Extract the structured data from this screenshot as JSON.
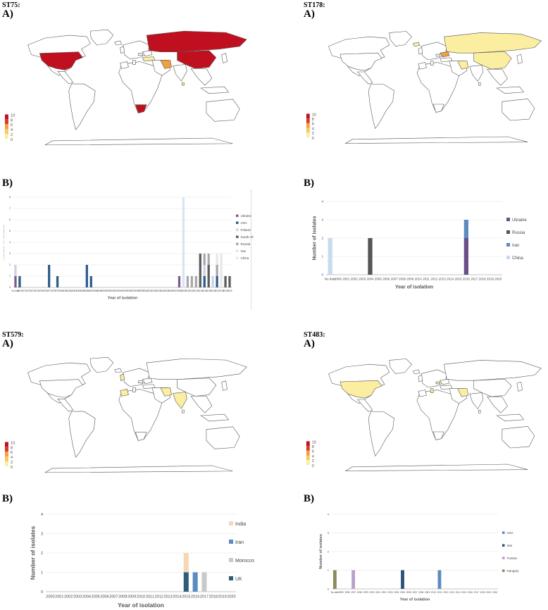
{
  "panels": [
    {
      "st": "ST75:",
      "map_label": "A)",
      "chart_label": "B)",
      "map_highlights": {
        "dark": [
          "usa",
          "russia",
          "china",
          "southafrica"
        ],
        "mid": [
          "iran"
        ],
        "light": [
          "turkey",
          "sriLanka"
        ]
      },
      "scale_ticks": [
        "10",
        "8",
        "6",
        "4",
        "2",
        "0"
      ]
    },
    {
      "st": "ST178:",
      "map_label": "A)",
      "chart_label": "B)",
      "map_highlights": {
        "dark": [],
        "mid": [
          "ukraine"
        ],
        "light": [
          "russia",
          "china",
          "iran",
          "iceland"
        ]
      },
      "scale_ticks": [
        "10",
        "8",
        "6",
        "4",
        "2",
        "0"
      ]
    },
    {
      "st": "ST579:",
      "map_label": "A)",
      "chart_label": "B)",
      "map_highlights": {
        "dark": [],
        "mid": [],
        "light": [
          "morocco",
          "india",
          "iran",
          "uk"
        ]
      },
      "scale_ticks": [
        "10",
        "8",
        "6",
        "4",
        "2",
        "0"
      ]
    },
    {
      "st": "ST483:",
      "map_label": "A)",
      "chart_label": "B)",
      "map_highlights": {
        "dark": [],
        "mid": [],
        "light": [
          "usa",
          "iran",
          "tunisia",
          "hungary"
        ]
      },
      "scale_ticks": [
        "10",
        "8",
        "6",
        "4",
        "2",
        "0"
      ]
    }
  ],
  "map_colors": {
    "dark": "#c0101f",
    "mid": "#f0a040",
    "light": "#fbeea0",
    "land": "#ffffff",
    "border": "#555555"
  },
  "chart_data": [
    {
      "type": "bar",
      "stacked": true,
      "title": "",
      "xlabel": "Year of isolation",
      "ylabel": "Number of isolates",
      "ylim": [
        0,
        8
      ],
      "yticks": [
        "0",
        "1",
        "2",
        "3",
        "4",
        "5",
        "6",
        "7",
        "8"
      ],
      "categories": [
        "No date",
        "1970",
        "1971",
        "1972",
        "1973",
        "1974",
        "1975",
        "1976",
        "1977",
        "1978",
        "1979",
        "1980",
        "1981",
        "1982",
        "1983",
        "1984",
        "1985",
        "1986",
        "1987",
        "1988",
        "1989",
        "1990",
        "1991",
        "1992",
        "1993",
        "1994",
        "1995",
        "1996",
        "1997",
        "1998",
        "1999",
        "2000",
        "2001",
        "2002",
        "2003",
        "2004",
        "2005",
        "2006",
        "2007",
        "2008",
        "2009",
        "2010",
        "2011",
        "2012",
        "2013",
        "2014",
        "2015",
        "2016",
        "2017",
        "2018",
        "2019",
        "2020"
      ],
      "series": [
        {
          "name": "Ukraine",
          "color": "#7d5b8c",
          "values": [
            1,
            0,
            0,
            0,
            0,
            0,
            0,
            0,
            0,
            0,
            0,
            0,
            0,
            0,
            0,
            0,
            0,
            0,
            0,
            0,
            0,
            0,
            0,
            0,
            0,
            0,
            0,
            0,
            0,
            0,
            0,
            0,
            0,
            0,
            0,
            0,
            0,
            0,
            0,
            1,
            0,
            0,
            0,
            0,
            0,
            0,
            0,
            0,
            0,
            0,
            0,
            0
          ]
        },
        {
          "name": "USA",
          "color": "#2e5d8a",
          "values": [
            0,
            1,
            0,
            0,
            0,
            0,
            0,
            0,
            2,
            0,
            1,
            0,
            0,
            0,
            0,
            0,
            0,
            2,
            1,
            0,
            0,
            0,
            0,
            0,
            0,
            0,
            0,
            0,
            0,
            0,
            0,
            0,
            0,
            0,
            0,
            0,
            0,
            0,
            0,
            0,
            0,
            0,
            0,
            0,
            0,
            1,
            0,
            0,
            1,
            0,
            0,
            0
          ]
        },
        {
          "name": "Poland",
          "color": "#c9d4e2",
          "values": [
            1,
            0,
            0,
            0,
            0,
            0,
            0,
            0,
            0,
            0,
            0,
            0,
            0,
            0,
            0,
            0,
            0,
            0,
            0,
            0,
            0,
            0,
            0,
            0,
            0,
            0,
            0,
            0,
            0,
            0,
            0,
            0,
            0,
            0,
            0,
            0,
            0,
            0,
            0,
            0,
            0,
            0,
            0,
            0,
            0,
            1,
            0,
            1,
            0,
            0,
            0,
            0
          ]
        },
        {
          "name": "South Africa",
          "color": "#5b5b5b",
          "values": [
            0,
            0,
            0,
            0,
            0,
            0,
            0,
            0,
            0,
            0,
            0,
            0,
            0,
            0,
            0,
            0,
            0,
            0,
            0,
            0,
            0,
            0,
            0,
            0,
            0,
            0,
            0,
            0,
            0,
            0,
            0,
            0,
            0,
            0,
            0,
            0,
            0,
            0,
            0,
            0,
            0,
            0,
            0,
            0,
            3,
            0,
            2,
            0,
            0,
            0,
            1,
            1
          ]
        },
        {
          "name": "Russia",
          "color": "#a8a8a8",
          "values": [
            0,
            0,
            0,
            0,
            0,
            0,
            0,
            0,
            0,
            0,
            0,
            0,
            0,
            0,
            0,
            0,
            0,
            0,
            0,
            0,
            0,
            0,
            0,
            0,
            0,
            0,
            0,
            0,
            0,
            0,
            0,
            0,
            0,
            0,
            0,
            0,
            0,
            0,
            0,
            0,
            0,
            1,
            1,
            1,
            0,
            1,
            1,
            0,
            1,
            0,
            0,
            0
          ]
        },
        {
          "name": "Iran",
          "color": "#d6e4f4",
          "values": [
            0,
            0,
            0,
            0,
            0,
            0,
            0,
            0,
            0,
            0,
            0,
            0,
            0,
            0,
            0,
            0,
            0,
            0,
            0,
            0,
            0,
            0,
            0,
            0,
            0,
            0,
            0,
            0,
            0,
            0,
            0,
            0,
            0,
            0,
            0,
            0,
            0,
            0,
            0,
            0,
            8,
            0,
            0,
            0,
            0,
            0,
            0,
            0,
            0,
            0,
            0,
            0
          ]
        },
        {
          "name": "China",
          "color": "#e8e8e8",
          "values": [
            0,
            0,
            0,
            0,
            0,
            0,
            0,
            0,
            0,
            0,
            0,
            0,
            0,
            0,
            0,
            0,
            0,
            0,
            0,
            0,
            0,
            0,
            0,
            0,
            0,
            0,
            0,
            0,
            0,
            0,
            0,
            0,
            0,
            0,
            0,
            0,
            0,
            0,
            0,
            0,
            0,
            0,
            0,
            0,
            0,
            0,
            0,
            0,
            1,
            3,
            0,
            0
          ]
        }
      ],
      "legend": "right"
    },
    {
      "type": "bar",
      "stacked": true,
      "xlabel": "Year of isolation",
      "ylabel": "Number of isolates",
      "ylim": [
        0,
        4
      ],
      "yticks": [
        "0",
        "1",
        "2",
        "3",
        "4"
      ],
      "categories": [
        "No date",
        "2000",
        "2001",
        "2002",
        "2003",
        "2004",
        "2005",
        "2006",
        "2007",
        "2008",
        "2009",
        "2010",
        "2011",
        "2012",
        "2013",
        "2014",
        "2015",
        "2016",
        "2017",
        "2018",
        "2019",
        "2020"
      ],
      "series": [
        {
          "name": "Ukraine",
          "color": "#6a4f8a",
          "values": [
            0,
            0,
            0,
            0,
            0,
            0,
            0,
            0,
            0,
            0,
            0,
            0,
            0,
            0,
            0,
            0,
            0,
            2,
            0,
            0,
            0,
            0
          ]
        },
        {
          "name": "Russia",
          "color": "#555555",
          "values": [
            0,
            0,
            0,
            0,
            0,
            2,
            0,
            0,
            0,
            0,
            0,
            0,
            0,
            0,
            0,
            0,
            0,
            0,
            0,
            0,
            0,
            0
          ]
        },
        {
          "name": "Iran",
          "color": "#5b8cc0",
          "values": [
            0,
            0,
            0,
            0,
            0,
            0,
            0,
            0,
            0,
            0,
            0,
            0,
            0,
            0,
            0,
            0,
            0,
            1,
            0,
            0,
            0,
            0
          ]
        },
        {
          "name": "China",
          "color": "#c7dbf0",
          "values": [
            2,
            0,
            0,
            0,
            0,
            0,
            0,
            0,
            0,
            0,
            0,
            0,
            0,
            0,
            0,
            0,
            0,
            0,
            0,
            0,
            0,
            0
          ]
        }
      ],
      "legend": "right"
    },
    {
      "type": "bar",
      "stacked": true,
      "xlabel": "Year of isolation",
      "ylabel": "Number of isolates",
      "ylim": [
        0,
        4
      ],
      "yticks": [
        "0",
        "1",
        "2",
        "3",
        "4"
      ],
      "categories": [
        "2000",
        "2001",
        "2002",
        "2003",
        "2004",
        "2005",
        "2006",
        "2007",
        "2008",
        "2009",
        "2010",
        "2011",
        "2012",
        "2013",
        "2014",
        "2015",
        "2016",
        "2017",
        "2018",
        "2019",
        "2020"
      ],
      "series": [
        {
          "name": "UK",
          "color": "#2e5d7a",
          "values": [
            0,
            0,
            0,
            0,
            0,
            0,
            0,
            0,
            0,
            0,
            0,
            0,
            0,
            0,
            0,
            1,
            0,
            0,
            0,
            0,
            0
          ]
        },
        {
          "name": "Iran",
          "color": "#5b8cc0",
          "values": [
            0,
            0,
            0,
            0,
            0,
            0,
            0,
            0,
            0,
            0,
            0,
            0,
            0,
            0,
            0,
            0,
            1,
            0,
            0,
            0,
            0
          ]
        },
        {
          "name": "Morocco",
          "color": "#c9c9c9",
          "values": [
            0,
            0,
            0,
            0,
            0,
            0,
            0,
            0,
            0,
            0,
            0,
            0,
            0,
            0,
            0,
            0,
            0,
            1,
            0,
            0,
            0
          ]
        },
        {
          "name": "India",
          "color": "#f7d6b4",
          "values": [
            0,
            0,
            0,
            0,
            0,
            0,
            0,
            0,
            0,
            0,
            0,
            0,
            0,
            0,
            0,
            1,
            0,
            0,
            0,
            0,
            0
          ]
        }
      ],
      "legend_order": [
        "India",
        "Iran",
        "Morocco",
        "UK"
      ],
      "legend": "right"
    },
    {
      "type": "bar",
      "stacked": true,
      "xlabel": "Year of isolation",
      "ylabel": "Number of isolates",
      "ylim": [
        0,
        4
      ],
      "yticks": [
        "0",
        "1",
        "2",
        "3",
        "4"
      ],
      "categories": [
        "No date",
        "1995",
        "1996",
        "1997",
        "1998",
        "1999",
        "2000",
        "2001",
        "2002",
        "2003",
        "2004",
        "2005",
        "2006",
        "2007",
        "2008",
        "2009",
        "2010",
        "2011",
        "2012",
        "2013",
        "2014",
        "2015",
        "2016",
        "2017",
        "2018",
        "2019",
        "2020"
      ],
      "series": [
        {
          "name": "Hungary",
          "color": "#8a8a5a",
          "values": [
            1,
            0,
            0,
            0,
            0,
            0,
            0,
            0,
            0,
            0,
            0,
            0,
            0,
            0,
            0,
            0,
            0,
            0,
            0,
            0,
            0,
            0,
            0,
            0,
            0,
            0,
            0
          ]
        },
        {
          "name": "Tunisia",
          "color": "#b9a0c8",
          "values": [
            0,
            0,
            0,
            1,
            0,
            0,
            0,
            0,
            0,
            0,
            0,
            0,
            0,
            0,
            0,
            0,
            0,
            0,
            0,
            0,
            0,
            0,
            0,
            0,
            0,
            0,
            0
          ]
        },
        {
          "name": "Iran",
          "color": "#2e4f7a",
          "values": [
            0,
            0,
            0,
            0,
            0,
            0,
            0,
            0,
            0,
            0,
            0,
            1,
            0,
            0,
            0,
            0,
            0,
            0,
            0,
            0,
            0,
            0,
            0,
            0,
            0,
            0,
            0
          ]
        },
        {
          "name": "USA",
          "color": "#5b8cc0",
          "values": [
            0,
            0,
            0,
            0,
            0,
            0,
            0,
            0,
            0,
            0,
            0,
            0,
            0,
            0,
            0,
            0,
            0,
            1,
            0,
            0,
            0,
            0,
            0,
            0,
            0,
            0,
            0
          ]
        }
      ],
      "legend_order": [
        "USA",
        "Iran",
        "Tunisia",
        "Hungary"
      ],
      "legend": "right"
    }
  ]
}
